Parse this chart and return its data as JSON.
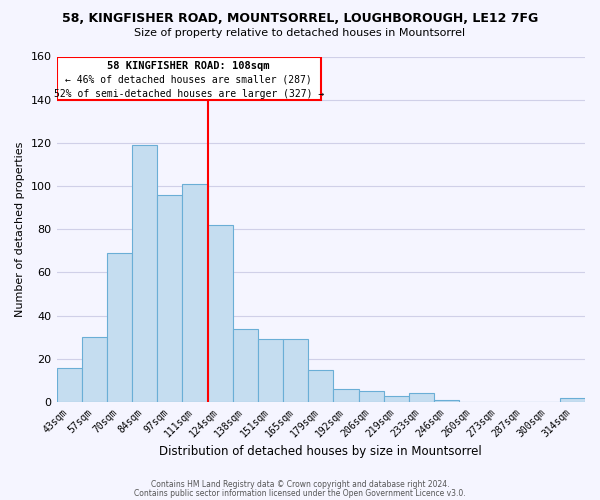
{
  "title": "58, KINGFISHER ROAD, MOUNTSORREL, LOUGHBOROUGH, LE12 7FG",
  "subtitle": "Size of property relative to detached houses in Mountsorrel",
  "xlabel": "Distribution of detached houses by size in Mountsorrel",
  "ylabel": "Number of detached properties",
  "bar_color": "#c5ddf0",
  "bar_edge_color": "#6aaed6",
  "bins": [
    "43sqm",
    "57sqm",
    "70sqm",
    "84sqm",
    "97sqm",
    "111sqm",
    "124sqm",
    "138sqm",
    "151sqm",
    "165sqm",
    "179sqm",
    "192sqm",
    "206sqm",
    "219sqm",
    "233sqm",
    "246sqm",
    "260sqm",
    "273sqm",
    "287sqm",
    "300sqm",
    "314sqm"
  ],
  "values": [
    16,
    30,
    69,
    119,
    96,
    101,
    82,
    34,
    29,
    29,
    15,
    6,
    5,
    3,
    4,
    1,
    0,
    0,
    0,
    0,
    2
  ],
  "ref_line_x": 5.5,
  "ref_line_label": "58 KINGFISHER ROAD: 108sqm",
  "annotation_line1": "← 46% of detached houses are smaller (287)",
  "annotation_line2": "52% of semi-detached houses are larger (327) →",
  "ylim": [
    0,
    160
  ],
  "yticks": [
    0,
    20,
    40,
    60,
    80,
    100,
    120,
    140,
    160
  ],
  "footer1": "Contains HM Land Registry data © Crown copyright and database right 2024.",
  "footer2": "Contains public sector information licensed under the Open Government Licence v3.0.",
  "background_color": "#f5f5ff",
  "grid_color": "#d0d0e8"
}
